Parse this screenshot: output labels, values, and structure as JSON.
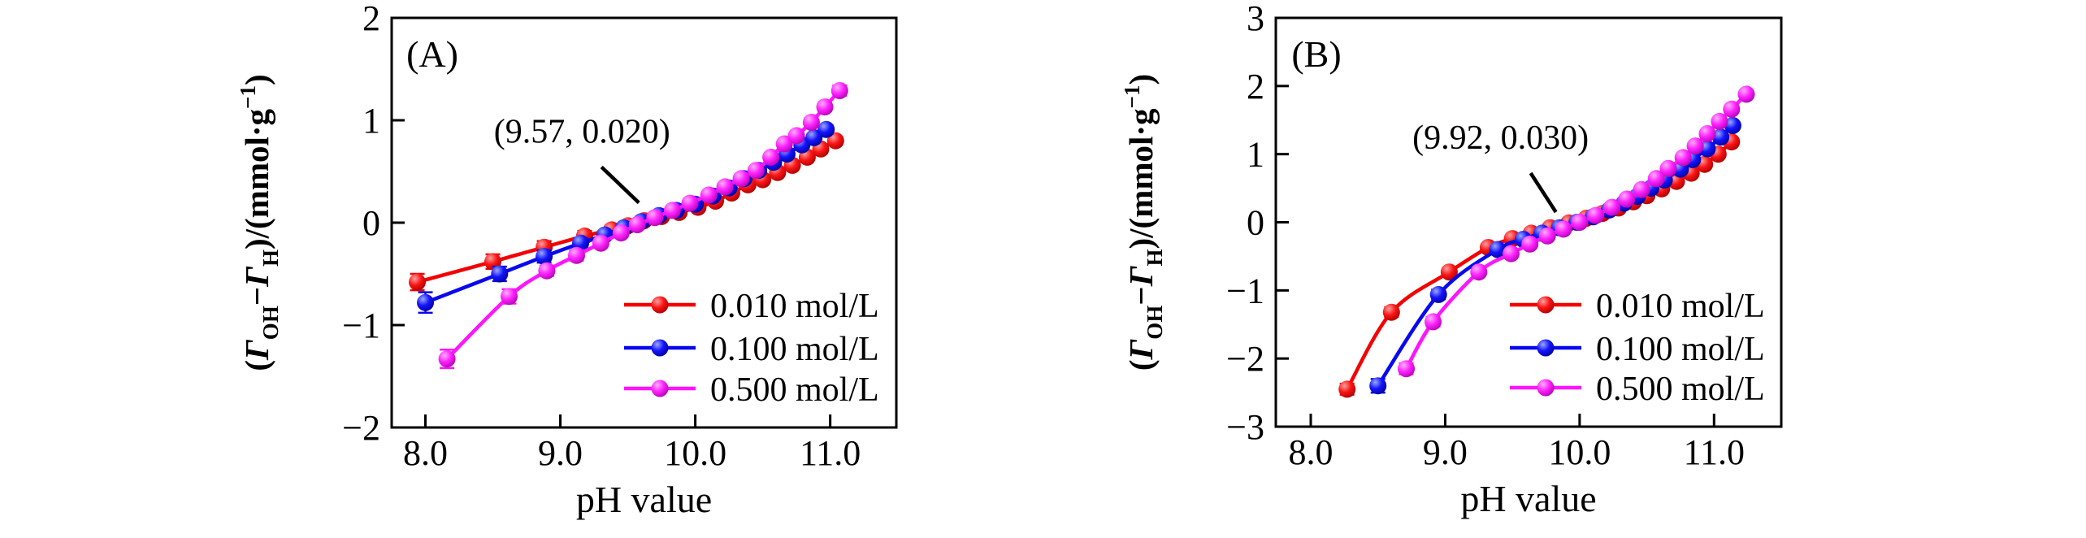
{
  "figure": {
    "background": "#ffffff",
    "font_color": "#000000"
  },
  "chart_data": [
    {
      "type": "line",
      "panel_label": "(A)",
      "xlabel": "pH value",
      "ylabel_segments": [
        {
          "text": "("
        },
        {
          "text": "Γ",
          "style": "italic"
        },
        {
          "text": "OH",
          "style": "sub"
        },
        {
          "text": "−"
        },
        {
          "text": "Γ",
          "style": "italic"
        },
        {
          "text": "H",
          "style": "sub"
        },
        {
          "text": ")/(mmol·g"
        },
        {
          "text": "−1",
          "style": "sup"
        },
        {
          "text": ")"
        }
      ],
      "xlim": [
        7.75,
        11.49
      ],
      "ylim": [
        -2,
        2
      ],
      "xticks": [
        {
          "v": 8.0,
          "label": "8.0"
        },
        {
          "v": 9.0,
          "label": "9.0"
        },
        {
          "v": 10.0,
          "label": "10.0"
        },
        {
          "v": 11.0,
          "label": "11.0"
        }
      ],
      "yticks": [
        {
          "v": -2,
          "label": "−2"
        },
        {
          "v": -1,
          "label": "−1"
        },
        {
          "v": 0,
          "label": "0"
        },
        {
          "v": 1,
          "label": "1"
        },
        {
          "v": 2,
          "label": "2"
        }
      ],
      "annotation": {
        "text": "(9.57, 0.020)",
        "x": 9.57,
        "y": 0.02
      },
      "legend_position": "inside-lower-right",
      "grid": false,
      "series": [
        {
          "name": "0.010 mol/L",
          "color": "#f40000",
          "gradient": [
            "#ffa0a0",
            "#fb1414",
            "#a00000"
          ],
          "points": [
            [
              7.94,
              -0.58,
              0.08
            ],
            [
              8.5,
              -0.38,
              0.07
            ],
            [
              8.88,
              -0.24,
              0.06
            ],
            [
              9.18,
              -0.13,
              0.05
            ],
            [
              9.38,
              -0.07,
              0.04
            ],
            [
              9.5,
              -0.03,
              0.04
            ],
            [
              9.62,
              0.02,
              0.03
            ],
            [
              9.75,
              0.06,
              0.03
            ],
            [
              9.88,
              0.1,
              0.03
            ],
            [
              10.02,
              0.15,
              0.03
            ],
            [
              10.15,
              0.21,
              0.03
            ],
            [
              10.27,
              0.29,
              0.03
            ],
            [
              10.39,
              0.37,
              0.03
            ],
            [
              10.5,
              0.42,
              0.03
            ],
            [
              10.61,
              0.49,
              0.03
            ],
            [
              10.72,
              0.56,
              0.03
            ],
            [
              10.83,
              0.64,
              0.03
            ],
            [
              10.93,
              0.72,
              0.04
            ],
            [
              11.04,
              0.8,
              0.04
            ]
          ]
        },
        {
          "name": "0.100 mol/L",
          "color": "#0808f0",
          "gradient": [
            "#9baaff",
            "#1414fb",
            "#000090"
          ],
          "points": [
            [
              8.0,
              -0.78,
              0.1
            ],
            [
              8.55,
              -0.5,
              0.07
            ],
            [
              8.88,
              -0.33,
              0.06
            ],
            [
              9.15,
              -0.2,
              0.05
            ],
            [
              9.33,
              -0.12,
              0.04
            ],
            [
              9.47,
              -0.05,
              0.04
            ],
            [
              9.6,
              0.01,
              0.03
            ],
            [
              9.73,
              0.07,
              0.03
            ],
            [
              9.86,
              0.12,
              0.03
            ],
            [
              10.0,
              0.18,
              0.03
            ],
            [
              10.13,
              0.26,
              0.03
            ],
            [
              10.25,
              0.34,
              0.03
            ],
            [
              10.36,
              0.43,
              0.03
            ],
            [
              10.47,
              0.51,
              0.03
            ],
            [
              10.58,
              0.59,
              0.03
            ],
            [
              10.68,
              0.67,
              0.03
            ],
            [
              10.79,
              0.76,
              0.03
            ],
            [
              10.88,
              0.83,
              0.04
            ],
            [
              10.97,
              0.91,
              0.04
            ]
          ]
        },
        {
          "name": "0.500 mol/L",
          "color": "#ff14ff",
          "gradient": [
            "#ffb0ff",
            "#ff22ff",
            "#a800a8"
          ],
          "points": [
            [
              8.16,
              -1.33,
              0.09
            ],
            [
              8.62,
              -0.72,
              0.07
            ],
            [
              8.9,
              -0.47,
              0.05
            ],
            [
              9.12,
              -0.32,
              0.05
            ],
            [
              9.3,
              -0.2,
              0.04
            ],
            [
              9.45,
              -0.1,
              0.04
            ],
            [
              9.57,
              -0.02,
              0.03
            ],
            [
              9.7,
              0.05,
              0.03
            ],
            [
              9.83,
              0.12,
              0.03
            ],
            [
              9.96,
              0.19,
              0.03
            ],
            [
              10.1,
              0.27,
              0.03
            ],
            [
              10.22,
              0.35,
              0.03
            ],
            [
              10.34,
              0.43,
              0.03
            ],
            [
              10.45,
              0.51,
              0.03
            ],
            [
              10.56,
              0.64,
              0.03
            ],
            [
              10.66,
              0.77,
              0.03
            ],
            [
              10.75,
              0.85,
              0.03
            ],
            [
              10.86,
              0.98,
              0.04
            ],
            [
              10.96,
              1.13,
              0.04
            ],
            [
              11.07,
              1.29,
              0.05
            ]
          ]
        }
      ]
    },
    {
      "type": "line",
      "panel_label": "(B)",
      "xlabel": "pH value",
      "ylabel_segments": [
        {
          "text": "("
        },
        {
          "text": "Γ",
          "style": "italic"
        },
        {
          "text": "OH",
          "style": "sub"
        },
        {
          "text": "−"
        },
        {
          "text": "Γ",
          "style": "italic"
        },
        {
          "text": "H",
          "style": "sub"
        },
        {
          "text": ")/(mmol·g"
        },
        {
          "text": "−1",
          "style": "sup"
        },
        {
          "text": ")"
        }
      ],
      "xlim": [
        7.74,
        11.5
      ],
      "ylim": [
        -3,
        3
      ],
      "xticks": [
        {
          "v": 8.0,
          "label": "8.0"
        },
        {
          "v": 9.0,
          "label": "9.0"
        },
        {
          "v": 10.0,
          "label": "10.0"
        },
        {
          "v": 11.0,
          "label": "11.0"
        }
      ],
      "yticks": [
        {
          "v": -3,
          "label": "−3"
        },
        {
          "v": -2,
          "label": "−2"
        },
        {
          "v": -1,
          "label": "−1"
        },
        {
          "v": 0,
          "label": "0"
        },
        {
          "v": 1,
          "label": "1"
        },
        {
          "v": 2,
          "label": "2"
        },
        {
          "v": 3,
          "label": "3"
        }
      ],
      "annotation": {
        "text": "(9.92, 0.030)",
        "x": 9.92,
        "y": 0.03
      },
      "legend_position": "inside-lower-right",
      "grid": false,
      "series": [
        {
          "name": "0.010 mol/L",
          "color": "#f40000",
          "gradient": [
            "#ffa0a0",
            "#fb1414",
            "#a00000"
          ],
          "points": [
            [
              8.27,
              -2.45,
              0.08
            ],
            [
              8.6,
              -1.32,
              0.07
            ],
            [
              9.03,
              -0.73,
              0.06
            ],
            [
              9.32,
              -0.37,
              0.05
            ],
            [
              9.5,
              -0.24,
              0.04
            ],
            [
              9.64,
              -0.16,
              0.04
            ],
            [
              9.78,
              -0.08,
              0.03
            ],
            [
              9.92,
              -0.01,
              0.03
            ],
            [
              10.05,
              0.06,
              0.03
            ],
            [
              10.17,
              0.13,
              0.03
            ],
            [
              10.29,
              0.21,
              0.03
            ],
            [
              10.4,
              0.3,
              0.03
            ],
            [
              10.5,
              0.39,
              0.03
            ],
            [
              10.61,
              0.49,
              0.03
            ],
            [
              10.72,
              0.6,
              0.03
            ],
            [
              10.83,
              0.72,
              0.04
            ],
            [
              10.93,
              0.85,
              0.04
            ],
            [
              11.03,
              1.0,
              0.04
            ],
            [
              11.13,
              1.18,
              0.05
            ]
          ]
        },
        {
          "name": "0.100 mol/L",
          "color": "#0808f0",
          "gradient": [
            "#9baaff",
            "#1414fb",
            "#000090"
          ],
          "points": [
            [
              8.5,
              -2.4,
              0.1
            ],
            [
              8.95,
              -1.06,
              0.07
            ],
            [
              9.39,
              -0.4,
              0.05
            ],
            [
              9.58,
              -0.25,
              0.04
            ],
            [
              9.72,
              -0.16,
              0.04
            ],
            [
              9.85,
              -0.08,
              0.03
            ],
            [
              9.98,
              0.0,
              0.03
            ],
            [
              10.1,
              0.08,
              0.03
            ],
            [
              10.22,
              0.18,
              0.03
            ],
            [
              10.33,
              0.28,
              0.03
            ],
            [
              10.43,
              0.38,
              0.03
            ],
            [
              10.53,
              0.5,
              0.03
            ],
            [
              10.63,
              0.62,
              0.03
            ],
            [
              10.75,
              0.78,
              0.03
            ],
            [
              10.84,
              0.92,
              0.04
            ],
            [
              10.95,
              1.08,
              0.04
            ],
            [
              11.05,
              1.25,
              0.04
            ],
            [
              11.14,
              1.42,
              0.05
            ]
          ]
        },
        {
          "name": "0.500 mol/L",
          "color": "#ff14ff",
          "gradient": [
            "#ffb0ff",
            "#ff22ff",
            "#a800a8"
          ],
          "points": [
            [
              8.71,
              -2.15,
              0.08
            ],
            [
              8.91,
              -1.46,
              0.07
            ],
            [
              9.25,
              -0.73,
              0.05
            ],
            [
              9.49,
              -0.46,
              0.04
            ],
            [
              9.63,
              -0.32,
              0.04
            ],
            [
              9.76,
              -0.2,
              0.04
            ],
            [
              9.88,
              -0.1,
              0.03
            ],
            [
              10.0,
              0.0,
              0.03
            ],
            [
              10.12,
              0.1,
              0.03
            ],
            [
              10.24,
              0.22,
              0.03
            ],
            [
              10.35,
              0.34,
              0.03
            ],
            [
              10.46,
              0.48,
              0.03
            ],
            [
              10.57,
              0.64,
              0.03
            ],
            [
              10.66,
              0.79,
              0.03
            ],
            [
              10.77,
              0.95,
              0.04
            ],
            [
              10.86,
              1.12,
              0.04
            ],
            [
              10.95,
              1.3,
              0.04
            ],
            [
              11.04,
              1.48,
              0.04
            ],
            [
              11.13,
              1.66,
              0.05
            ],
            [
              11.24,
              1.88,
              0.05
            ]
          ]
        }
      ]
    }
  ]
}
